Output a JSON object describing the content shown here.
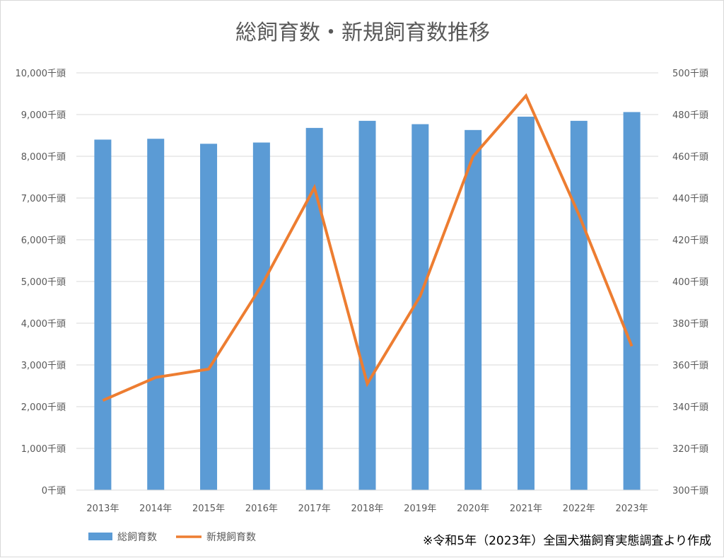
{
  "chart_data": {
    "type": "bar+line",
    "title": "総飼育数・新規飼育数推移",
    "categories": [
      "2013年",
      "2014年",
      "2015年",
      "2016年",
      "2017年",
      "2018年",
      "2019年",
      "2020年",
      "2021年",
      "2022年",
      "2023年"
    ],
    "series": [
      {
        "name": "総飼育数",
        "type": "bar",
        "axis": "left",
        "color": "#5b9bd5",
        "values": [
          8400,
          8420,
          8300,
          8330,
          8680,
          8850,
          8770,
          8630,
          8950,
          8850,
          9060
        ]
      },
      {
        "name": "新規飼育数",
        "type": "line",
        "axis": "right",
        "color": "#ed7d31",
        "values": [
          343,
          354,
          358,
          398,
          445,
          351,
          393,
          460,
          489,
          432,
          369
        ]
      }
    ],
    "y_left": {
      "ylim": [
        0,
        10000
      ],
      "ticks": [
        0,
        1000,
        2000,
        3000,
        4000,
        5000,
        6000,
        7000,
        8000,
        9000,
        10000
      ],
      "tick_labels": [
        "0千頭",
        "1,000千頭",
        "2,000千頭",
        "3,000千頭",
        "4,000千頭",
        "5,000千頭",
        "6,000千頭",
        "7,000千頭",
        "8,000千頭",
        "9,000千頭",
        "10,000千頭"
      ]
    },
    "y_right": {
      "ylim": [
        300,
        500
      ],
      "ticks": [
        300,
        320,
        340,
        360,
        380,
        400,
        420,
        440,
        460,
        480,
        500
      ],
      "tick_labels": [
        "300千頭",
        "320千頭",
        "340千頭",
        "360千頭",
        "380千頭",
        "400千頭",
        "420千頭",
        "440千頭",
        "460千頭",
        "480千頭",
        "500千頭"
      ]
    },
    "grid": true,
    "legend_position": "bottom-left",
    "note": "※令和5年（2023年）全国犬猫飼育実態調査より作成"
  }
}
